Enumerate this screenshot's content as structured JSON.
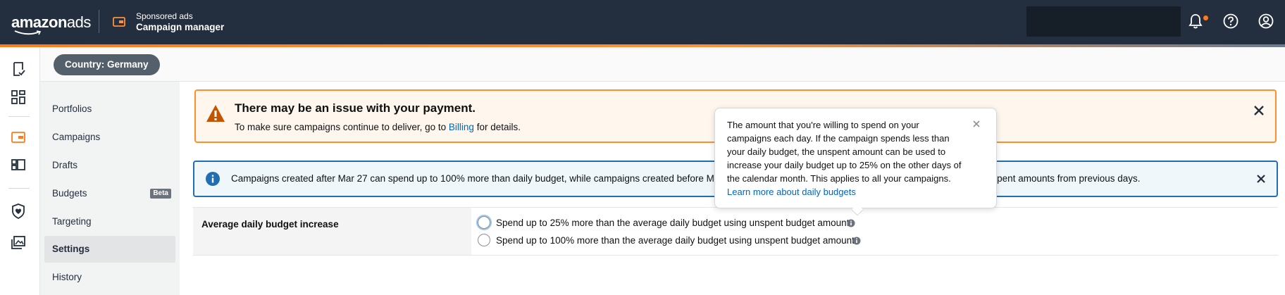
{
  "header": {
    "logo_main": "amazon",
    "logo_suffix": "ads",
    "app_subtitle": "Sponsored ads",
    "app_title": "Campaign manager"
  },
  "country": {
    "label": "Country: Germany"
  },
  "subnav": {
    "items": [
      {
        "label": "Portfolios"
      },
      {
        "label": "Campaigns"
      },
      {
        "label": "Drafts"
      },
      {
        "label": "Budgets",
        "badge": "Beta"
      },
      {
        "label": "Targeting"
      },
      {
        "label": "Settings",
        "active": true
      },
      {
        "label": "History"
      }
    ]
  },
  "payment_alert": {
    "title": "There may be an issue with your payment.",
    "text_before": "To make sure campaigns continue to deliver, go to ",
    "link": "Billing",
    "text_after": " for details."
  },
  "info_alert": {
    "text_start": "Campaigns created after Mar 27 can spend up to 100% more than daily budget, while campaigns created before Mar",
    "text_end": "nspent amounts from previous days."
  },
  "budget_setting": {
    "label": "Average daily budget increase",
    "options": [
      {
        "label": "Spend up to 25% more than the average daily budget using unspent budget amounts"
      },
      {
        "label": "Spend up to 100% more than the average daily budget using unspent budget amounts"
      }
    ]
  },
  "popover": {
    "text": "The amount that you're willing to spend on your campaigns each day. If the campaign spends less than your daily budget, the unspent amount can be used to increase your daily budget up to 25% on the other days of the calendar month. This applies to all your campaigns. ",
    "link": "Learn more about daily budgets"
  },
  "colors": {
    "topbar": "#232f3e",
    "accent": "#ff7a1a",
    "link": "#0066c0",
    "warning_border": "#ff8f2a",
    "info_border": "#1f6fb2"
  },
  "icons": {
    "rail": [
      "checklist-icon",
      "dashboard-icon",
      "campaign-manager-icon",
      "media-icon",
      "shield-icon",
      "gallery-icon"
    ]
  }
}
